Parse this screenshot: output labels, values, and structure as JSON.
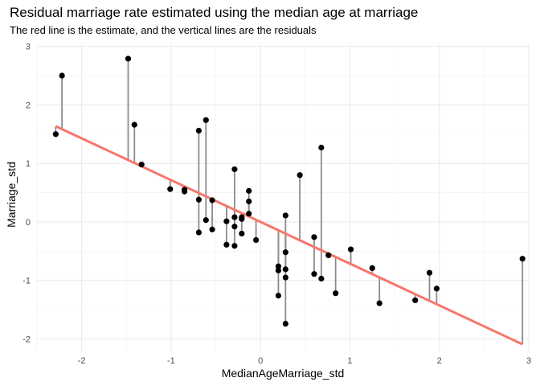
{
  "chart_data": {
    "type": "scatter",
    "title": "Residual marriage rate estimated using the median age at marriage",
    "subtitle": "The red line is the estimate, and the vertical lines are the residuals",
    "xlabel": "MedianAgeMarriage_std",
    "ylabel": "Marriage_std",
    "xlim": [
      -2.5,
      3.0
    ],
    "ylim": [
      -2.2,
      3.05
    ],
    "xticks": [
      -2,
      -1,
      0,
      1,
      2,
      3
    ],
    "yticks": [
      -2,
      -1,
      0,
      1,
      2,
      3
    ],
    "grid": true,
    "fit_line": {
      "intercept": 0.0,
      "slope": -0.714,
      "color": "#F8766D"
    },
    "residual_color": "#8c8c8c",
    "point_color": "#000000",
    "points": [
      {
        "x": -2.29,
        "y": 1.5
      },
      {
        "x": -2.22,
        "y": 2.5
      },
      {
        "x": -1.48,
        "y": 2.79
      },
      {
        "x": -1.41,
        "y": 1.66
      },
      {
        "x": -1.33,
        "y": 0.98
      },
      {
        "x": -1.01,
        "y": 0.56
      },
      {
        "x": -0.85,
        "y": 0.55
      },
      {
        "x": -0.85,
        "y": 0.52
      },
      {
        "x": -0.69,
        "y": 1.56
      },
      {
        "x": -0.69,
        "y": 0.38
      },
      {
        "x": -0.69,
        "y": -0.18
      },
      {
        "x": -0.61,
        "y": 1.74
      },
      {
        "x": -0.61,
        "y": 0.03
      },
      {
        "x": -0.54,
        "y": 0.37
      },
      {
        "x": -0.54,
        "y": -0.13
      },
      {
        "x": -0.38,
        "y": 0.01
      },
      {
        "x": -0.38,
        "y": -0.39
      },
      {
        "x": -0.29,
        "y": 0.9
      },
      {
        "x": -0.29,
        "y": 0.08
      },
      {
        "x": -0.29,
        "y": -0.08
      },
      {
        "x": -0.29,
        "y": -0.41
      },
      {
        "x": -0.21,
        "y": 0.08
      },
      {
        "x": -0.21,
        "y": 0.05
      },
      {
        "x": -0.21,
        "y": -0.2
      },
      {
        "x": -0.13,
        "y": 0.53
      },
      {
        "x": -0.13,
        "y": 0.35
      },
      {
        "x": -0.13,
        "y": 0.14
      },
      {
        "x": -0.05,
        "y": -0.31
      },
      {
        "x": 0.2,
        "y": -0.76
      },
      {
        "x": 0.2,
        "y": -0.83
      },
      {
        "x": 0.2,
        "y": -1.26
      },
      {
        "x": 0.28,
        "y": 0.11
      },
      {
        "x": 0.28,
        "y": -0.52
      },
      {
        "x": 0.28,
        "y": -0.81
      },
      {
        "x": 0.28,
        "y": -0.95
      },
      {
        "x": 0.28,
        "y": -1.74
      },
      {
        "x": 0.44,
        "y": 0.8
      },
      {
        "x": 0.6,
        "y": -0.26
      },
      {
        "x": 0.6,
        "y": -0.89
      },
      {
        "x": 0.68,
        "y": 1.27
      },
      {
        "x": 0.68,
        "y": -0.97
      },
      {
        "x": 0.76,
        "y": -0.57
      },
      {
        "x": 0.84,
        "y": -1.22
      },
      {
        "x": 1.01,
        "y": -0.47
      },
      {
        "x": 1.25,
        "y": -0.79
      },
      {
        "x": 1.33,
        "y": -1.39
      },
      {
        "x": 1.73,
        "y": -1.34
      },
      {
        "x": 1.89,
        "y": -0.87
      },
      {
        "x": 1.97,
        "y": -1.14
      },
      {
        "x": 2.93,
        "y": -0.63
      }
    ]
  }
}
